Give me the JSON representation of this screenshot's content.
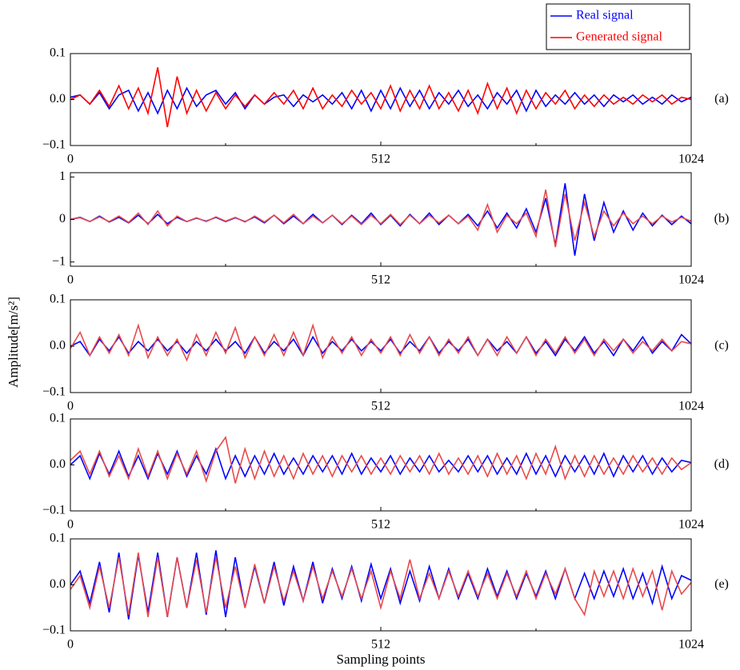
{
  "chart_data": [
    {
      "type": "line",
      "panel_label": "(a)",
      "legend": "top-right",
      "x": [
        0,
        16,
        32,
        48,
        64,
        80,
        96,
        112,
        128,
        144,
        160,
        176,
        192,
        208,
        224,
        240,
        256,
        272,
        288,
        304,
        320,
        336,
        352,
        368,
        384,
        400,
        416,
        432,
        448,
        464,
        480,
        496,
        512,
        528,
        544,
        560,
        576,
        592,
        608,
        624,
        640,
        656,
        672,
        688,
        704,
        720,
        736,
        752,
        768,
        784,
        800,
        816,
        832,
        848,
        864,
        880,
        896,
        912,
        928,
        944,
        960,
        976,
        992,
        1008,
        1024
      ],
      "series": [
        {
          "name": "Real signal",
          "color": "#0000ff",
          "values": [
            0.005,
            0.01,
            -0.01,
            0.015,
            -0.02,
            0.01,
            0.02,
            -0.025,
            0.015,
            -0.03,
            0.02,
            -0.02,
            0.025,
            -0.015,
            0.01,
            0.02,
            -0.01,
            0.015,
            -0.02,
            0.01,
            -0.01,
            0.005,
            0.01,
            -0.015,
            0.01,
            -0.005,
            0.01,
            -0.01,
            0.015,
            -0.02,
            0.02,
            -0.025,
            0.02,
            -0.02,
            0.025,
            -0.015,
            0.02,
            -0.02,
            0.015,
            -0.01,
            0.02,
            -0.015,
            0.01,
            -0.02,
            0.015,
            -0.01,
            0.02,
            -0.025,
            0.02,
            -0.015,
            0.01,
            -0.01,
            0.015,
            -0.01,
            0.01,
            -0.015,
            0.01,
            -0.005,
            0.01,
            -0.01,
            0.005,
            -0.01,
            0.01,
            -0.005,
            0.005
          ]
        },
        {
          "name": "Generated signal",
          "color": "#ff0000",
          "values": [
            0,
            0.01,
            -0.01,
            0.02,
            -0.015,
            0.03,
            -0.02,
            0.025,
            -0.03,
            0.07,
            -0.06,
            0.05,
            -0.03,
            0.02,
            -0.025,
            0.015,
            -0.02,
            0.01,
            -0.015,
            0.01,
            -0.01,
            0.015,
            -0.01,
            0.02,
            -0.02,
            0.025,
            -0.02,
            0.01,
            -0.015,
            0.02,
            -0.01,
            0.015,
            -0.02,
            0.03,
            -0.025,
            0.02,
            -0.02,
            0.03,
            -0.02,
            0.015,
            -0.025,
            0.02,
            -0.03,
            0.035,
            -0.02,
            0.025,
            -0.03,
            0.02,
            -0.02,
            0.015,
            -0.01,
            0.02,
            -0.02,
            0.01,
            -0.015,
            0.01,
            -0.01,
            0.005,
            -0.01,
            0.01,
            -0.005,
            0.01,
            -0.01,
            0.005,
            0
          ]
        }
      ],
      "xlim": [
        0,
        1024
      ],
      "xticks": [
        0,
        512,
        1024
      ],
      "minor_xticks": [
        256,
        768
      ],
      "ylim": [
        -0.1,
        0.1
      ],
      "yticks": [
        {
          "value": -0.1,
          "label": "−0.1"
        },
        {
          "value": 0,
          "label": "0.0"
        },
        0.1
      ]
    },
    {
      "type": "line",
      "panel_label": "(b)",
      "x": [
        0,
        16,
        32,
        48,
        64,
        80,
        96,
        112,
        128,
        144,
        160,
        176,
        192,
        208,
        224,
        240,
        256,
        272,
        288,
        304,
        320,
        336,
        352,
        368,
        384,
        400,
        416,
        432,
        448,
        464,
        480,
        496,
        512,
        528,
        544,
        560,
        576,
        592,
        608,
        624,
        640,
        656,
        672,
        688,
        704,
        720,
        736,
        752,
        768,
        784,
        800,
        816,
        832,
        848,
        864,
        880,
        896,
        912,
        928,
        944,
        960,
        976,
        992,
        1008,
        1024
      ],
      "series": [
        {
          "color": "#0000ff",
          "values": [
            0,
            0.05,
            -0.05,
            0.08,
            -0.06,
            0.05,
            -0.08,
            0.1,
            -0.1,
            0.12,
            -0.1,
            0.05,
            -0.05,
            0.03,
            -0.04,
            0.05,
            -0.05,
            0.04,
            -0.05,
            0.06,
            -0.08,
            0.1,
            -0.1,
            0.08,
            -0.1,
            0.12,
            -0.08,
            0.1,
            -0.12,
            0.1,
            -0.1,
            0.15,
            -0.12,
            0.1,
            -0.15,
            0.12,
            -0.1,
            0.15,
            -0.12,
            0.1,
            -0.1,
            0.12,
            -0.15,
            0.2,
            -0.2,
            0.15,
            -0.2,
            0.25,
            -0.3,
            0.5,
            -0.6,
            0.85,
            -0.85,
            0.6,
            -0.5,
            0.4,
            -0.3,
            0.2,
            -0.25,
            0.15,
            -0.15,
            0.1,
            -0.12,
            0.08,
            -0.1
          ]
        },
        {
          "color": "#e84a4a",
          "values": [
            0,
            0.04,
            -0.05,
            0.06,
            -0.05,
            0.08,
            -0.07,
            0.15,
            -0.12,
            0.2,
            -0.15,
            0.08,
            -0.05,
            0.04,
            -0.05,
            0.06,
            -0.04,
            0.05,
            -0.06,
            0.08,
            -0.06,
            0.1,
            -0.08,
            0.12,
            -0.1,
            0.08,
            -0.08,
            0.1,
            -0.1,
            0.08,
            -0.12,
            0.1,
            -0.1,
            0.12,
            -0.12,
            0.1,
            -0.1,
            0.1,
            -0.08,
            0.1,
            -0.1,
            0.08,
            -0.25,
            0.35,
            -0.3,
            0.1,
            -0.1,
            0.15,
            -0.4,
            0.7,
            -0.65,
            0.6,
            -0.5,
            0.4,
            -0.4,
            0.2,
            -0.15,
            0.15,
            -0.1,
            0.08,
            -0.1,
            0.08,
            -0.06,
            0.05,
            -0.04
          ]
        }
      ],
      "xlim": [
        0,
        1024
      ],
      "xticks": [
        0,
        512,
        1024
      ],
      "minor_xticks": [
        256,
        768
      ],
      "ylim": [
        -1.1,
        1.1
      ],
      "yticks": [
        {
          "value": -1,
          "label": "−1"
        },
        0,
        1
      ]
    },
    {
      "type": "line",
      "panel_label": "(c)",
      "ylabel": "Amplitude[m/s²]",
      "x": [
        0,
        16,
        32,
        48,
        64,
        80,
        96,
        112,
        128,
        144,
        160,
        176,
        192,
        208,
        224,
        240,
        256,
        272,
        288,
        304,
        320,
        336,
        352,
        368,
        384,
        400,
        416,
        432,
        448,
        464,
        480,
        496,
        512,
        528,
        544,
        560,
        576,
        592,
        608,
        624,
        640,
        656,
        672,
        688,
        704,
        720,
        736,
        752,
        768,
        784,
        800,
        816,
        832,
        848,
        864,
        880,
        896,
        912,
        928,
        944,
        960,
        976,
        992,
        1008,
        1024
      ],
      "series": [
        {
          "color": "#0000ff",
          "values": [
            0,
            0.01,
            -0.02,
            0.015,
            -0.01,
            0.02,
            -0.015,
            0.01,
            -0.01,
            0.015,
            -0.01,
            0.01,
            -0.015,
            0.01,
            -0.01,
            0.015,
            -0.01,
            0.01,
            -0.015,
            0.02,
            -0.015,
            0.01,
            -0.01,
            0.015,
            -0.02,
            0.02,
            -0.015,
            0.01,
            -0.01,
            0.015,
            -0.01,
            0.01,
            -0.01,
            0.015,
            -0.015,
            0.01,
            -0.01,
            0.02,
            -0.015,
            0.01,
            -0.01,
            0.015,
            -0.02,
            0.015,
            -0.01,
            0.01,
            -0.015,
            0.02,
            -0.015,
            0.01,
            -0.02,
            0.015,
            -0.01,
            0.02,
            -0.015,
            0.01,
            -0.02,
            0.015,
            -0.01,
            0.02,
            -0.015,
            0.01,
            -0.01,
            0.025,
            0.005
          ]
        },
        {
          "color": "#e84a4a",
          "values": [
            -0.005,
            0.03,
            -0.02,
            0.02,
            -0.015,
            0.025,
            -0.02,
            0.045,
            -0.025,
            0.02,
            -0.02,
            0.015,
            -0.03,
            0.025,
            -0.02,
            0.03,
            -0.015,
            0.04,
            -0.025,
            0.02,
            -0.02,
            0.025,
            -0.02,
            0.03,
            -0.02,
            0.045,
            -0.025,
            0.02,
            -0.015,
            0.02,
            -0.02,
            0.015,
            -0.015,
            0.02,
            -0.02,
            0.025,
            -0.015,
            0.02,
            -0.02,
            0.015,
            -0.015,
            0.02,
            -0.02,
            0.015,
            -0.02,
            0.02,
            -0.015,
            0.02,
            -0.02,
            0.015,
            -0.015,
            0.02,
            -0.015,
            0.015,
            -0.02,
            0.015,
            -0.01,
            0.015,
            -0.015,
            0.01,
            -0.01,
            0.015,
            -0.01,
            0.01,
            0.005
          ]
        }
      ],
      "xlim": [
        0,
        1024
      ],
      "xticks": [
        0,
        512,
        1024
      ],
      "minor_xticks": [
        256,
        768
      ],
      "ylim": [
        -0.1,
        0.1
      ],
      "yticks": [
        {
          "value": -0.1,
          "label": "−0.1"
        },
        {
          "value": 0,
          "label": "0.0"
        },
        0.1
      ]
    },
    {
      "type": "line",
      "panel_label": "(d)",
      "x": [
        0,
        16,
        32,
        48,
        64,
        80,
        96,
        112,
        128,
        144,
        160,
        176,
        192,
        208,
        224,
        240,
        256,
        272,
        288,
        304,
        320,
        336,
        352,
        368,
        384,
        400,
        416,
        432,
        448,
        464,
        480,
        496,
        512,
        528,
        544,
        560,
        576,
        592,
        608,
        624,
        640,
        656,
        672,
        688,
        704,
        720,
        736,
        752,
        768,
        784,
        800,
        816,
        832,
        848,
        864,
        880,
        896,
        912,
        928,
        944,
        960,
        976,
        992,
        1008,
        1024
      ],
      "series": [
        {
          "color": "#0000ff",
          "values": [
            0,
            0.02,
            -0.03,
            0.025,
            -0.02,
            0.03,
            -0.025,
            0.02,
            -0.03,
            0.025,
            -0.02,
            0.03,
            -0.025,
            0.02,
            -0.02,
            0.035,
            -0.03,
            0.02,
            -0.025,
            0.02,
            -0.02,
            0.025,
            -0.02,
            0.015,
            -0.02,
            0.02,
            -0.015,
            0.02,
            -0.02,
            0.025,
            -0.02,
            0.015,
            -0.015,
            0.02,
            -0.02,
            0.015,
            -0.015,
            0.02,
            -0.015,
            0.01,
            -0.015,
            0.02,
            -0.015,
            0.02,
            -0.02,
            0.015,
            -0.02,
            0.025,
            -0.02,
            0.02,
            -0.025,
            0.02,
            -0.015,
            0.02,
            -0.02,
            0.025,
            -0.025,
            0.02,
            -0.015,
            0.02,
            -0.02,
            0.015,
            -0.015,
            0.01,
            0.005
          ]
        },
        {
          "color": "#e84a4a",
          "values": [
            0.01,
            0.03,
            -0.02,
            0.03,
            -0.025,
            0.02,
            -0.03,
            0.035,
            -0.025,
            0.03,
            -0.03,
            0.025,
            -0.02,
            0.03,
            -0.035,
            0.03,
            0.06,
            -0.04,
            0.035,
            -0.03,
            0.03,
            -0.025,
            0.02,
            -0.03,
            0.025,
            -0.02,
            0.02,
            -0.025,
            0.02,
            -0.015,
            0.02,
            -0.02,
            0.015,
            -0.02,
            0.02,
            -0.015,
            0.02,
            -0.02,
            0.025,
            -0.02,
            0.015,
            -0.02,
            0.02,
            -0.025,
            0.025,
            -0.02,
            0.02,
            -0.03,
            0.025,
            -0.02,
            0.04,
            -0.03,
            0.02,
            -0.025,
            0.02,
            -0.02,
            0.015,
            -0.02,
            0.02,
            -0.015,
            0.015,
            -0.02,
            0.015,
            -0.01,
            0.005
          ]
        }
      ],
      "xlim": [
        0,
        1024
      ],
      "xticks": [
        0,
        512,
        1024
      ],
      "minor_xticks": [
        256,
        768
      ],
      "ylim": [
        -0.1,
        0.1
      ],
      "yticks": [
        {
          "value": -0.1,
          "label": "−0.1"
        },
        {
          "value": 0,
          "label": "0.0"
        },
        0.1
      ]
    },
    {
      "type": "line",
      "panel_label": "(e)",
      "xlabel": "Sampling points",
      "x": [
        0,
        16,
        32,
        48,
        64,
        80,
        96,
        112,
        128,
        144,
        160,
        176,
        192,
        208,
        224,
        240,
        256,
        272,
        288,
        304,
        320,
        336,
        352,
        368,
        384,
        400,
        416,
        432,
        448,
        464,
        480,
        496,
        512,
        528,
        544,
        560,
        576,
        592,
        608,
        624,
        640,
        656,
        672,
        688,
        704,
        720,
        736,
        752,
        768,
        784,
        800,
        816,
        832,
        848,
        864,
        880,
        896,
        912,
        928,
        944,
        960,
        976,
        992,
        1008,
        1024
      ],
      "series": [
        {
          "color": "#0000ff",
          "values": [
            0,
            0.03,
            -0.04,
            0.05,
            -0.06,
            0.07,
            -0.075,
            0.065,
            -0.06,
            0.07,
            -0.07,
            0.06,
            -0.05,
            0.07,
            -0.065,
            0.075,
            -0.07,
            0.06,
            -0.05,
            0.04,
            -0.04,
            0.05,
            -0.045,
            0.04,
            -0.035,
            0.05,
            -0.04,
            0.035,
            -0.03,
            0.04,
            -0.035,
            0.045,
            -0.03,
            0.035,
            -0.04,
            0.03,
            -0.035,
            0.04,
            -0.03,
            0.035,
            -0.03,
            0.025,
            -0.03,
            0.035,
            -0.025,
            0.03,
            -0.03,
            0.025,
            -0.025,
            0.03,
            -0.03,
            0.035,
            -0.03,
            0.025,
            -0.03,
            0.03,
            -0.025,
            0.035,
            -0.03,
            0.025,
            -0.04,
            0.04,
            -0.03,
            0.02,
            0.01
          ]
        },
        {
          "color": "#e84a4a",
          "values": [
            -0.01,
            0.02,
            -0.05,
            0.04,
            -0.05,
            0.06,
            -0.065,
            0.07,
            -0.07,
            0.06,
            -0.07,
            0.06,
            -0.05,
            0.055,
            -0.06,
            0.06,
            -0.05,
            0.04,
            -0.05,
            0.045,
            -0.04,
            0.04,
            -0.035,
            0.03,
            -0.035,
            0.04,
            -0.03,
            0.03,
            -0.025,
            0.035,
            -0.03,
            0.03,
            -0.05,
            0.03,
            -0.03,
            0.055,
            -0.03,
            0.025,
            -0.03,
            0.03,
            -0.025,
            0.03,
            -0.025,
            0.025,
            -0.03,
            0.025,
            -0.025,
            0.03,
            -0.03,
            0.025,
            -0.02,
            0.035,
            -0.03,
            -0.065,
            0.03,
            -0.025,
            0.03,
            -0.03,
            0.035,
            -0.025,
            0.03,
            -0.055,
            0.03,
            -0.02,
            0.005
          ]
        }
      ],
      "xlim": [
        0,
        1024
      ],
      "xticks": [
        0,
        512,
        1024
      ],
      "minor_xticks": [
        256,
        768
      ],
      "ylim": [
        -0.1,
        0.1
      ],
      "yticks": [
        {
          "value": -0.1,
          "label": "−0.1"
        },
        {
          "value": 0,
          "label": "0.0"
        },
        0.1
      ]
    }
  ]
}
